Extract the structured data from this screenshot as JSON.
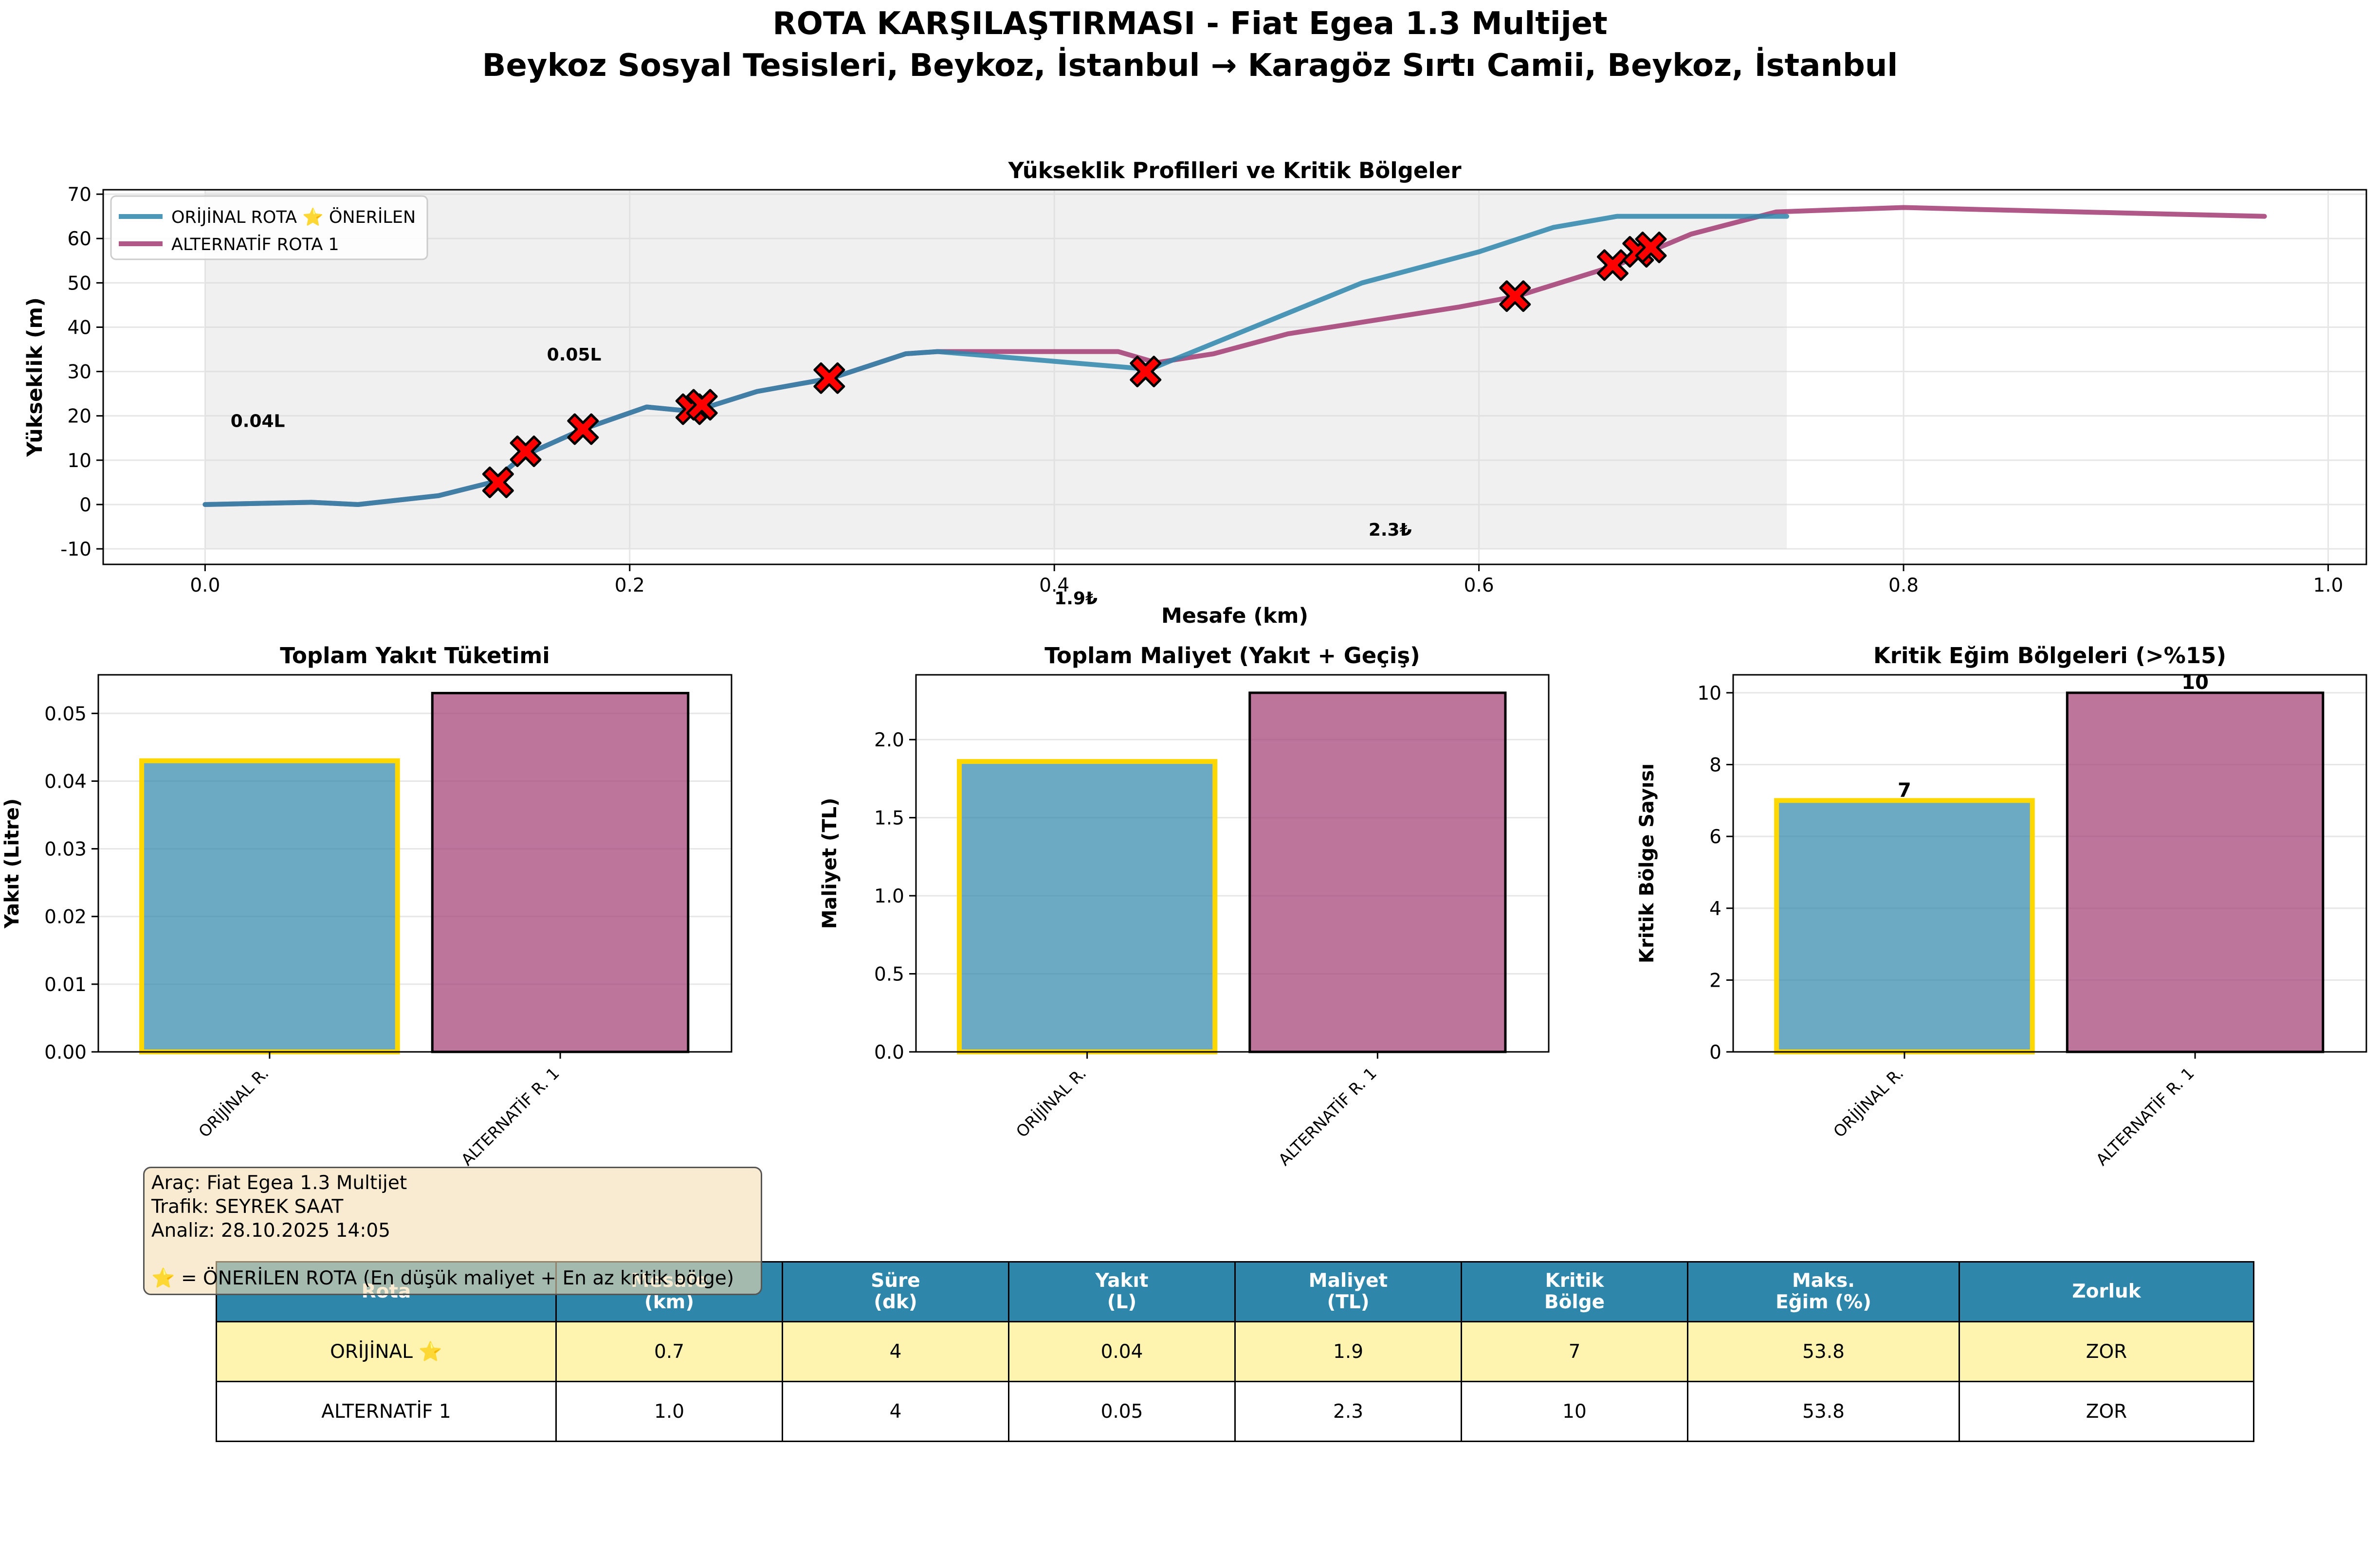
{
  "figure": {
    "title_line1": "ROTA KARŞILAŞTIRMASI - Fiat Egea 1.3 Multijet",
    "title_line2": "Beykoz Sosyal Tesisleri, Beykoz, İstanbul → Karagöz Sırtı Camii, Beykoz, İstanbul"
  },
  "colors": {
    "original": "#2e86ab",
    "alternative": "#a23b72",
    "highlight": "#ffd700",
    "critical_marker": "#ff0000",
    "fill": "#d9d9d9",
    "table_header": "#2e86ab",
    "table_highlight_row": "#fff3b0"
  },
  "chart_data": [
    {
      "id": "elevation",
      "type": "line",
      "title": "Yükseklik Profilleri ve Kritik Bölgeler",
      "xlabel": "Mesafe (km)",
      "ylabel": "Yükseklik (m)",
      "xlim": [
        -0.048,
        1.018
      ],
      "ylim": [
        -13.5,
        71
      ],
      "xticks": [
        0.0,
        0.2,
        0.4,
        0.6,
        0.8,
        1.0
      ],
      "xtick_labels": [
        "0.0",
        "0.2",
        "0.4",
        "0.6",
        "0.8",
        "1.0"
      ],
      "yticks": [
        -10,
        0,
        10,
        20,
        30,
        40,
        50,
        60,
        70
      ],
      "ytick_labels": [
        "-10",
        "0",
        "10",
        "20",
        "30",
        "40",
        "50",
        "60",
        "70"
      ],
      "grid": true,
      "legend_position": "upper-left",
      "legend": [
        "ORİJİNAL ROTA ⭐ ÖNERİLEN",
        "ALTERNATİF ROTA 1"
      ],
      "fill_between": {
        "x_start": 0.0,
        "x_end": 0.745,
        "y_bottom": -10
      },
      "series": [
        {
          "name": "ORİJİNAL ROTA ⭐ ÖNERİLEN",
          "color_key": "original",
          "x": [
            0.0,
            0.05,
            0.072,
            0.11,
            0.135,
            0.15,
            0.178,
            0.208,
            0.23,
            0.26,
            0.295,
            0.33,
            0.345,
            0.445,
            0.545,
            0.6,
            0.635,
            0.665,
            0.745
          ],
          "y": [
            0,
            0.5,
            0,
            2,
            5,
            11,
            17,
            22,
            21,
            25.5,
            28.5,
            34,
            34.5,
            30.5,
            50,
            57,
            62.5,
            65,
            65
          ]
        },
        {
          "name": "ALTERNATİF ROTA 1",
          "color_key": "alternative",
          "x": [
            0.0,
            0.05,
            0.072,
            0.11,
            0.135,
            0.15,
            0.178,
            0.208,
            0.23,
            0.26,
            0.295,
            0.33,
            0.345,
            0.43,
            0.448,
            0.475,
            0.51,
            0.59,
            0.618,
            0.665,
            0.68,
            0.7,
            0.74,
            0.8,
            0.84,
            0.9,
            0.97
          ],
          "y": [
            0,
            0.5,
            0,
            2,
            5,
            11,
            17,
            22,
            21,
            25.5,
            28.5,
            34,
            34.5,
            34.5,
            32,
            34,
            38.5,
            44.5,
            47,
            54,
            57,
            61,
            66,
            67,
            66.5,
            65.8,
            65
          ]
        }
      ],
      "critical_points": {
        "x": [
          0.138,
          0.151,
          0.178,
          0.229,
          0.234,
          0.294,
          0.443,
          0.617,
          0.663,
          0.675,
          0.681
        ],
        "y": [
          5,
          12,
          17,
          21.5,
          22.5,
          28.5,
          30,
          47,
          54,
          57,
          58
        ]
      },
      "annotations": [
        {
          "text": "0.04L",
          "x": 0.012,
          "y": 17.5
        },
        {
          "text": "0.05L",
          "x": 0.161,
          "y": 32.5
        },
        {
          "text": "1.9₺",
          "x": 0.4,
          "y": -22.5
        },
        {
          "text": "2.3₺",
          "x": 0.548,
          "y": -7
        }
      ]
    },
    {
      "id": "fuel",
      "type": "bar",
      "title": "Toplam Yakıt Tüketimi",
      "ylabel": "Yakıt (Litre)",
      "categories": [
        "ORİJİNAL R.",
        "ALTERNATİF R. 1"
      ],
      "values": [
        0.043,
        0.053
      ],
      "ylim": [
        0,
        0.0557
      ],
      "yticks": [
        0.0,
        0.01,
        0.02,
        0.03,
        0.04,
        0.05
      ],
      "ytick_labels": [
        "0.00",
        "0.01",
        "0.02",
        "0.03",
        "0.04",
        "0.05"
      ],
      "value_labels": [
        "",
        ""
      ],
      "grid": true
    },
    {
      "id": "cost",
      "type": "bar",
      "title": "Toplam Maliyet (Yakıt + Geçiş)",
      "ylabel": "Maliyet (TL)",
      "categories": [
        "ORİJİNAL R.",
        "ALTERNATİF R. 1"
      ],
      "values": [
        1.86,
        2.3
      ],
      "ylim": [
        0,
        2.415
      ],
      "yticks": [
        0.0,
        0.5,
        1.0,
        1.5,
        2.0
      ],
      "ytick_labels": [
        "0.0",
        "0.5",
        "1.0",
        "1.5",
        "2.0"
      ],
      "value_labels": [
        "",
        ""
      ],
      "grid": true
    },
    {
      "id": "critical",
      "type": "bar",
      "title": "Kritik Eğim Bölgeleri (>%15)",
      "ylabel": "Kritik Bölge Sayısı",
      "categories": [
        "ORİJİNAL R.",
        "ALTERNATİF R. 1"
      ],
      "values": [
        7,
        10
      ],
      "ylim": [
        0,
        10.5
      ],
      "yticks": [
        0,
        2,
        4,
        6,
        8,
        10
      ],
      "ytick_labels": [
        "0",
        "2",
        "4",
        "6",
        "8",
        "10"
      ],
      "value_labels": [
        "7",
        "10"
      ],
      "grid": true
    }
  ],
  "info_box": {
    "line1": "Araç: Fiat Egea 1.3 Multijet",
    "line2": "Trafik: SEYREK SAAT",
    "line3": "Analiz: 28.10.2025 14:05",
    "line4": "⭐ = ÖNERİLEN ROTA (En düşük maliyet + En az kritik bölge)"
  },
  "table": {
    "headers": [
      "Rota",
      "Mesafe\n(km)",
      "Süre\n(dk)",
      "Yakıt\n(L)",
      "Maliyet\n(TL)",
      "Kritik\nBölge",
      "Maks.\nEğim (%)",
      "Zorluk"
    ],
    "rows": [
      [
        "ORİJİNAL ⭐",
        "0.7",
        "4",
        "0.04",
        "1.9",
        "7",
        "53.8",
        "ZOR"
      ],
      [
        "ALTERNATİF 1",
        "1.0",
        "4",
        "0.05",
        "2.3",
        "10",
        "53.8",
        "ZOR"
      ]
    ]
  }
}
